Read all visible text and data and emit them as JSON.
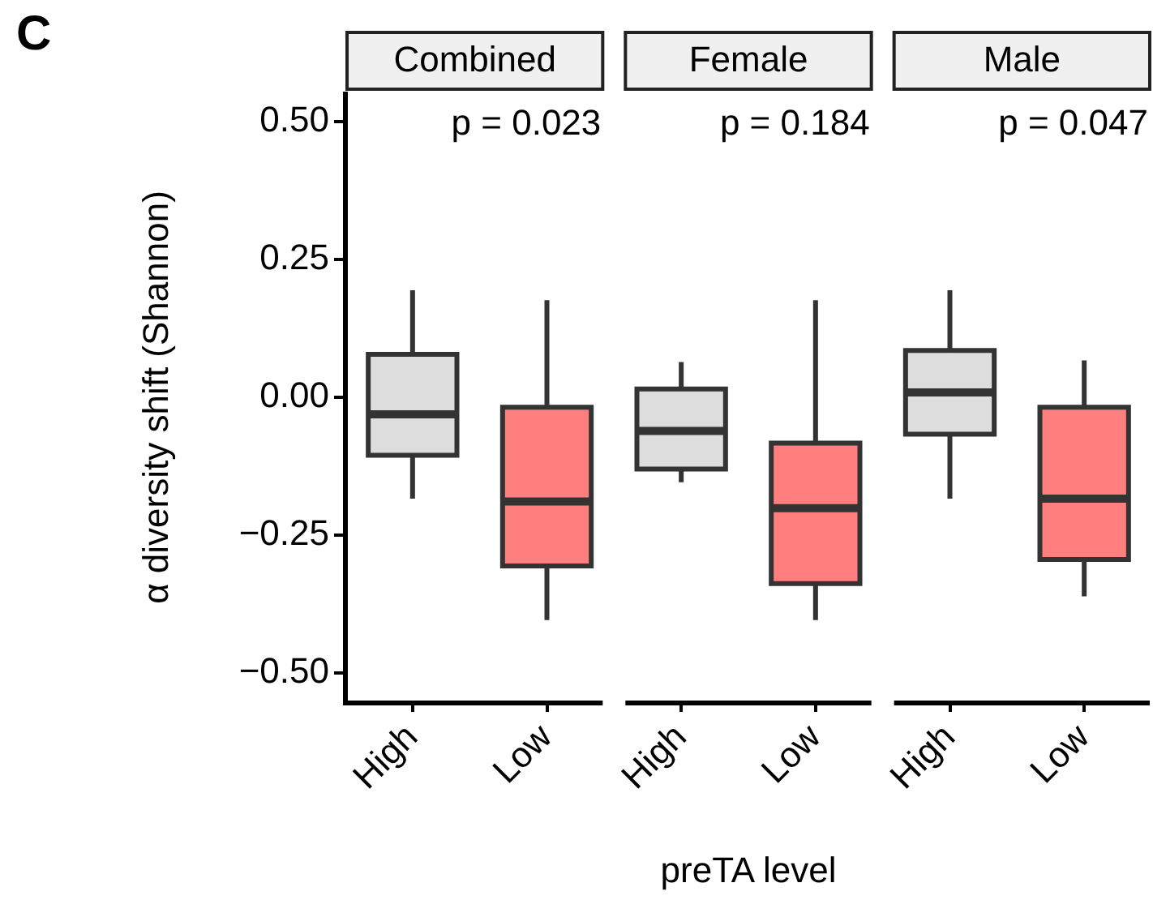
{
  "chart_data": {
    "type": "box",
    "categories": [
      "High",
      "Low",
      "High",
      "Low",
      "High",
      "Low"
    ],
    "colors": [
      "#dddddd",
      "#ff7f7f",
      "#dddddd",
      "#ff7f7f",
      "#dddddd",
      "#ff7f7f"
    ],
    "xlabel": "preTA level",
    "ylabel": "α diversity shift (Shannon)",
    "ylim": [
      -0.55,
      0.55
    ],
    "yticks": [
      {
        "value": -0.5,
        "label": "−0.50"
      },
      {
        "value": -0.25,
        "label": "−0.25"
      },
      {
        "value": 0,
        "label": "0.00"
      },
      {
        "value": 0.25,
        "label": "0.25"
      },
      {
        "value": 0.5,
        "label": "0.50"
      }
    ],
    "boxes": [
      {
        "low": -0.184,
        "q1": -0.105,
        "median": -0.031,
        "q3": 0.078,
        "high": 0.194
      },
      {
        "low": -0.404,
        "q1": -0.306,
        "median": -0.189,
        "q3": -0.018,
        "high": 0.176
      },
      {
        "low": -0.154,
        "q1": -0.13,
        "median": -0.061,
        "q3": 0.015,
        "high": 0.064
      },
      {
        "low": -0.404,
        "q1": -0.338,
        "median": -0.201,
        "q3": -0.083,
        "high": 0.176
      },
      {
        "low": -0.184,
        "q1": -0.067,
        "median": 0.009,
        "q3": 0.085,
        "high": 0.194
      },
      {
        "low": -0.361,
        "q1": -0.294,
        "median": -0.184,
        "q3": -0.018,
        "high": 0.067
      }
    ],
    "annotations": [
      "C",
      "Combined",
      "p = 0.023",
      "Female",
      "p = 0.184",
      "Male",
      "p = 0.047"
    ],
    "legend": false,
    "grid": false
  }
}
